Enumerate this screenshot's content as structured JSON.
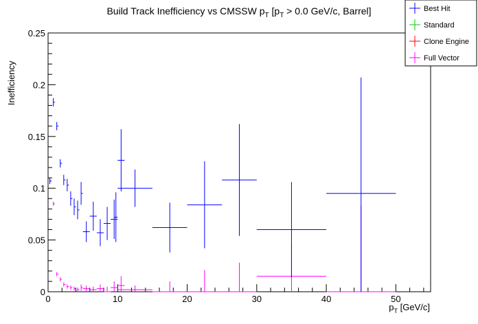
{
  "chart_data": {
    "type": "scatter",
    "title": "Build Track Inefficiency vs CMSSW p_{T} [p_{T} > 0.0 GeV/c, Barrel]",
    "title_parts": [
      "Build Track Inefficiency vs CMSSW p",
      "T",
      " [p",
      "T",
      " > 0.0 GeV/c, Barrel]"
    ],
    "xlabel_parts": [
      "p",
      "T",
      " [GeV/c]"
    ],
    "ylabel": "Inefficiency",
    "xlim": [
      0,
      55
    ],
    "ylim": [
      0,
      0.25
    ],
    "x_ticks": [
      "0",
      "10",
      "20",
      "30",
      "40",
      "50"
    ],
    "y_ticks": [
      "0",
      "0.05",
      "0.1",
      "0.15",
      "0.2",
      "0.25"
    ],
    "grid": false,
    "legend_position": "top-right",
    "colors": {
      "Best Hit": "#0000ff",
      "Standard": "#00cc00",
      "Clone Engine": "#ff0000",
      "Full Vector": "#ff00ff"
    },
    "series": [
      {
        "name": "Best Hit",
        "points": [
          [
            0.25,
            0.0,
            0.25,
            0.107,
            0.003
          ],
          [
            0.75,
            0.0,
            0.25,
            0.183,
            0.004
          ],
          [
            1.25,
            0.0,
            0.25,
            0.16,
            0.004
          ],
          [
            1.75,
            0.0,
            0.25,
            0.124,
            0.004
          ],
          [
            2.25,
            0.0,
            0.25,
            0.108,
            0.005
          ],
          [
            2.75,
            0.0,
            0.25,
            0.103,
            0.006
          ],
          [
            3.25,
            0.0,
            0.25,
            0.09,
            0.007
          ],
          [
            3.75,
            0.0,
            0.25,
            0.082,
            0.008
          ],
          [
            4.25,
            0.0,
            0.25,
            0.079,
            0.009
          ],
          [
            4.75,
            0.0,
            0.25,
            0.095,
            0.011
          ],
          [
            5.5,
            0.5,
            0.5,
            0.058,
            0.01
          ],
          [
            6.5,
            0.5,
            0.5,
            0.073,
            0.014
          ],
          [
            7.5,
            0.5,
            0.5,
            0.057,
            0.013
          ],
          [
            8.5,
            0.5,
            0.5,
            0.066,
            0.016
          ],
          [
            9.5,
            0.5,
            0.5,
            0.07,
            0.019
          ],
          [
            10.5,
            0.5,
            0.5,
            0.127,
            0.03
          ],
          [
            9.75,
            0.25,
            0.25,
            0.072,
            0.024
          ],
          [
            12.5,
            2.5,
            2.5,
            0.1,
            0.018
          ],
          [
            17.5,
            2.5,
            2.5,
            0.062,
            0.024
          ],
          [
            22.5,
            2.5,
            2.5,
            0.084,
            0.042
          ],
          [
            27.5,
            2.5,
            2.5,
            0.108,
            0.054
          ],
          [
            35.0,
            5.0,
            5.0,
            0.06,
            0.046
          ],
          [
            45.0,
            5.0,
            5.0,
            0.095,
            0.112
          ]
        ]
      },
      {
        "name": "Standard",
        "points": []
      },
      {
        "name": "Clone Engine",
        "points": []
      },
      {
        "name": "Full Vector",
        "points": [
          [
            0.25,
            0.0,
            0.25,
            0.107,
            0.002
          ],
          [
            0.75,
            0.0,
            0.25,
            0.085,
            0.002
          ],
          [
            1.25,
            0.0,
            0.25,
            0.017,
            0.002
          ],
          [
            1.75,
            0.0,
            0.25,
            0.012,
            0.002
          ],
          [
            2.25,
            0.0,
            0.25,
            0.007,
            0.002
          ],
          [
            2.75,
            0.0,
            0.25,
            0.005,
            0.002
          ],
          [
            3.25,
            0.0,
            0.25,
            0.004,
            0.002
          ],
          [
            3.75,
            0.0,
            0.25,
            0.003,
            0.002
          ],
          [
            4.25,
            0.0,
            0.25,
            0.002,
            0.002
          ],
          [
            4.75,
            0.0,
            0.25,
            0.004,
            0.003
          ],
          [
            5.5,
            0.5,
            0.5,
            0.003,
            0.003
          ],
          [
            6.5,
            0.5,
            0.5,
            0.002,
            0.003
          ],
          [
            7.5,
            0.5,
            0.5,
            0.003,
            0.004
          ],
          [
            8.5,
            0.5,
            0.5,
            0.0,
            0.005
          ],
          [
            9.5,
            0.5,
            0.5,
            0.004,
            0.006
          ],
          [
            10.5,
            0.5,
            0.5,
            0.006,
            0.009
          ],
          [
            12.5,
            2.5,
            2.5,
            0.002,
            0.004
          ],
          [
            17.5,
            2.5,
            2.5,
            0.0,
            0.01
          ],
          [
            22.5,
            2.5,
            2.5,
            0.0,
            0.021
          ],
          [
            27.5,
            2.5,
            2.5,
            0.0,
            0.028
          ],
          [
            35.0,
            5.0,
            5.0,
            0.015,
            0.032
          ],
          [
            45.0,
            5.0,
            5.0,
            0.0,
            0.083
          ]
        ]
      }
    ]
  }
}
